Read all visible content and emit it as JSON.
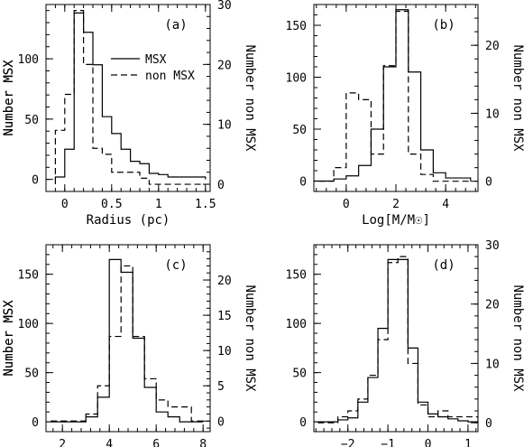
{
  "chart_data": [
    {
      "type": "histogram",
      "panel_label": "(a)",
      "xlabel": "Radius (pc)",
      "ylabel_left": "Number MSX",
      "ylabel_right": "Number non MSX",
      "xlim": [
        -0.2,
        1.55
      ],
      "ylim_left": [
        -10,
        145
      ],
      "ylim_right": [
        -1.2,
        30
      ],
      "xticks": [
        0,
        0.5,
        1,
        1.5
      ],
      "xtick_labels": [
        "0",
        "0.5",
        "1",
        "1.5"
      ],
      "yticks_left": [
        0,
        50,
        100
      ],
      "yticks_right": [
        0,
        10,
        20,
        30
      ],
      "legend": {
        "position": "middle-right",
        "entries": [
          "MSX",
          "non MSX"
        ]
      },
      "series": [
        {
          "name": "MSX",
          "style": "solid",
          "axis": "left",
          "edges": [
            -0.1,
            0,
            0.1,
            0.2,
            0.3,
            0.4,
            0.5,
            0.6,
            0.7,
            0.8,
            0.9,
            1.0,
            1.1,
            1.2,
            1.3,
            1.4,
            1.5
          ],
          "values": [
            2,
            25,
            138,
            122,
            95,
            52,
            38,
            25,
            15,
            13,
            5,
            4,
            2,
            2,
            2,
            2
          ]
        },
        {
          "name": "non MSX",
          "style": "dashed",
          "axis": "right",
          "edges": [
            -0.1,
            0,
            0.1,
            0.2,
            0.3,
            0.4,
            0.5,
            0.6,
            0.7,
            0.8,
            0.9,
            1.0,
            1.1,
            1.2,
            1.3,
            1.4,
            1.5
          ],
          "values": [
            9,
            15,
            29,
            20,
            6,
            5,
            2,
            2,
            2,
            1,
            0,
            0,
            0,
            0,
            0,
            0
          ]
        }
      ]
    },
    {
      "type": "histogram",
      "panel_label": "(b)",
      "xlabel": "Log[M/M☉]",
      "ylabel_left": "Number MSX",
      "ylabel_right": "Number non MSX",
      "xlim": [
        -1.3,
        5.3
      ],
      "ylim_left": [
        -10,
        170
      ],
      "ylim_right": [
        -1.5,
        26
      ],
      "xticks": [
        0,
        2,
        4
      ],
      "xtick_labels": [
        "0",
        "2",
        "4"
      ],
      "yticks_left": [
        0,
        50,
        100,
        150
      ],
      "yticks_right": [
        0,
        10,
        20
      ],
      "series": [
        {
          "name": "MSX",
          "style": "solid",
          "axis": "left",
          "edges": [
            -1.5,
            -1,
            -0.5,
            0,
            0.5,
            1,
            1.5,
            2,
            2.5,
            3,
            3.5,
            4,
            4.5,
            5
          ],
          "values": [
            0,
            0,
            2,
            5,
            15,
            50,
            110,
            165,
            105,
            30,
            8,
            3,
            3
          ]
        },
        {
          "name": "non MSX",
          "style": "dashed",
          "axis": "right",
          "edges": [
            -1.5,
            -1,
            -0.5,
            0,
            0.5,
            1,
            1.5,
            2,
            2.5,
            3,
            3.5,
            4,
            4.5,
            5
          ],
          "values": [
            0,
            0,
            2,
            13,
            12,
            4,
            17,
            25,
            4,
            1,
            0,
            0,
            0
          ]
        }
      ]
    },
    {
      "type": "histogram",
      "panel_label": "(c)",
      "xlabel": "Log [n(H₂)/cm⁻³]",
      "ylabel_left": "Number MSX",
      "ylabel_right": "Number non MSX",
      "xlim": [
        1.3,
        8.3
      ],
      "ylim_left": [
        -10,
        180
      ],
      "ylim_right": [
        -1.5,
        25
      ],
      "xticks": [
        2,
        4,
        6,
        8
      ],
      "xtick_labels": [
        "2",
        "4",
        "6",
        "8"
      ],
      "yticks_left": [
        0,
        50,
        100,
        150
      ],
      "yticks_right": [
        0,
        5,
        10,
        15,
        20
      ],
      "series": [
        {
          "name": "MSX",
          "style": "solid",
          "axis": "left",
          "edges": [
            1.5,
            2,
            2.5,
            3,
            3.5,
            4,
            4.5,
            5,
            5.5,
            6,
            6.5,
            7,
            7.5,
            8
          ],
          "values": [
            0,
            0,
            0,
            5,
            25,
            165,
            152,
            85,
            35,
            10,
            5,
            0,
            0
          ]
        },
        {
          "name": "non MSX",
          "style": "dashed",
          "axis": "right",
          "edges": [
            1.5,
            2,
            2.5,
            3,
            3.5,
            4,
            4.5,
            5,
            5.5,
            6,
            6.5,
            7,
            7.5,
            8
          ],
          "values": [
            0,
            0,
            0,
            1,
            5,
            12,
            22,
            12,
            6,
            3,
            2,
            2,
            0
          ]
        }
      ]
    },
    {
      "type": "histogram",
      "panel_label": "(d)",
      "xlabel": "Log [Σ(H₂)/g cm⁻²]",
      "ylabel_left": "Number MSX",
      "ylabel_right": "Number non MSX",
      "xlim": [
        -2.85,
        1.25
      ],
      "ylim_left": [
        -10,
        180
      ],
      "ylim_right": [
        -1.5,
        30
      ],
      "xticks": [
        -2,
        -1,
        0,
        1
      ],
      "xtick_labels": [
        "−2",
        "−1",
        "0",
        "1"
      ],
      "yticks_left": [
        0,
        50,
        100,
        150
      ],
      "yticks_right": [
        0,
        10,
        20,
        30
      ],
      "series": [
        {
          "name": "MSX",
          "style": "solid",
          "axis": "left",
          "edges": [
            -2.75,
            -2.5,
            -2.25,
            -2,
            -1.75,
            -1.5,
            -1.25,
            -1,
            -0.75,
            -0.5,
            -0.25,
            0,
            0.25,
            0.5,
            0.75,
            1,
            1.25
          ],
          "values": [
            0,
            0,
            2,
            4,
            20,
            45,
            95,
            165,
            165,
            75,
            20,
            8,
            5,
            3,
            1,
            0
          ]
        },
        {
          "name": "non MSX",
          "style": "dashed",
          "axis": "right",
          "edges": [
            -2.75,
            -2.5,
            -2.25,
            -2,
            -1.75,
            -1.5,
            -1.25,
            -1,
            -0.75,
            -0.5,
            -0.25,
            0,
            0.25,
            0.5,
            0.75,
            1,
            1.25
          ],
          "values": [
            0,
            0,
            1,
            2,
            4,
            8,
            14,
            27,
            28,
            10,
            3,
            1,
            2,
            1,
            1,
            1
          ]
        }
      ]
    }
  ]
}
